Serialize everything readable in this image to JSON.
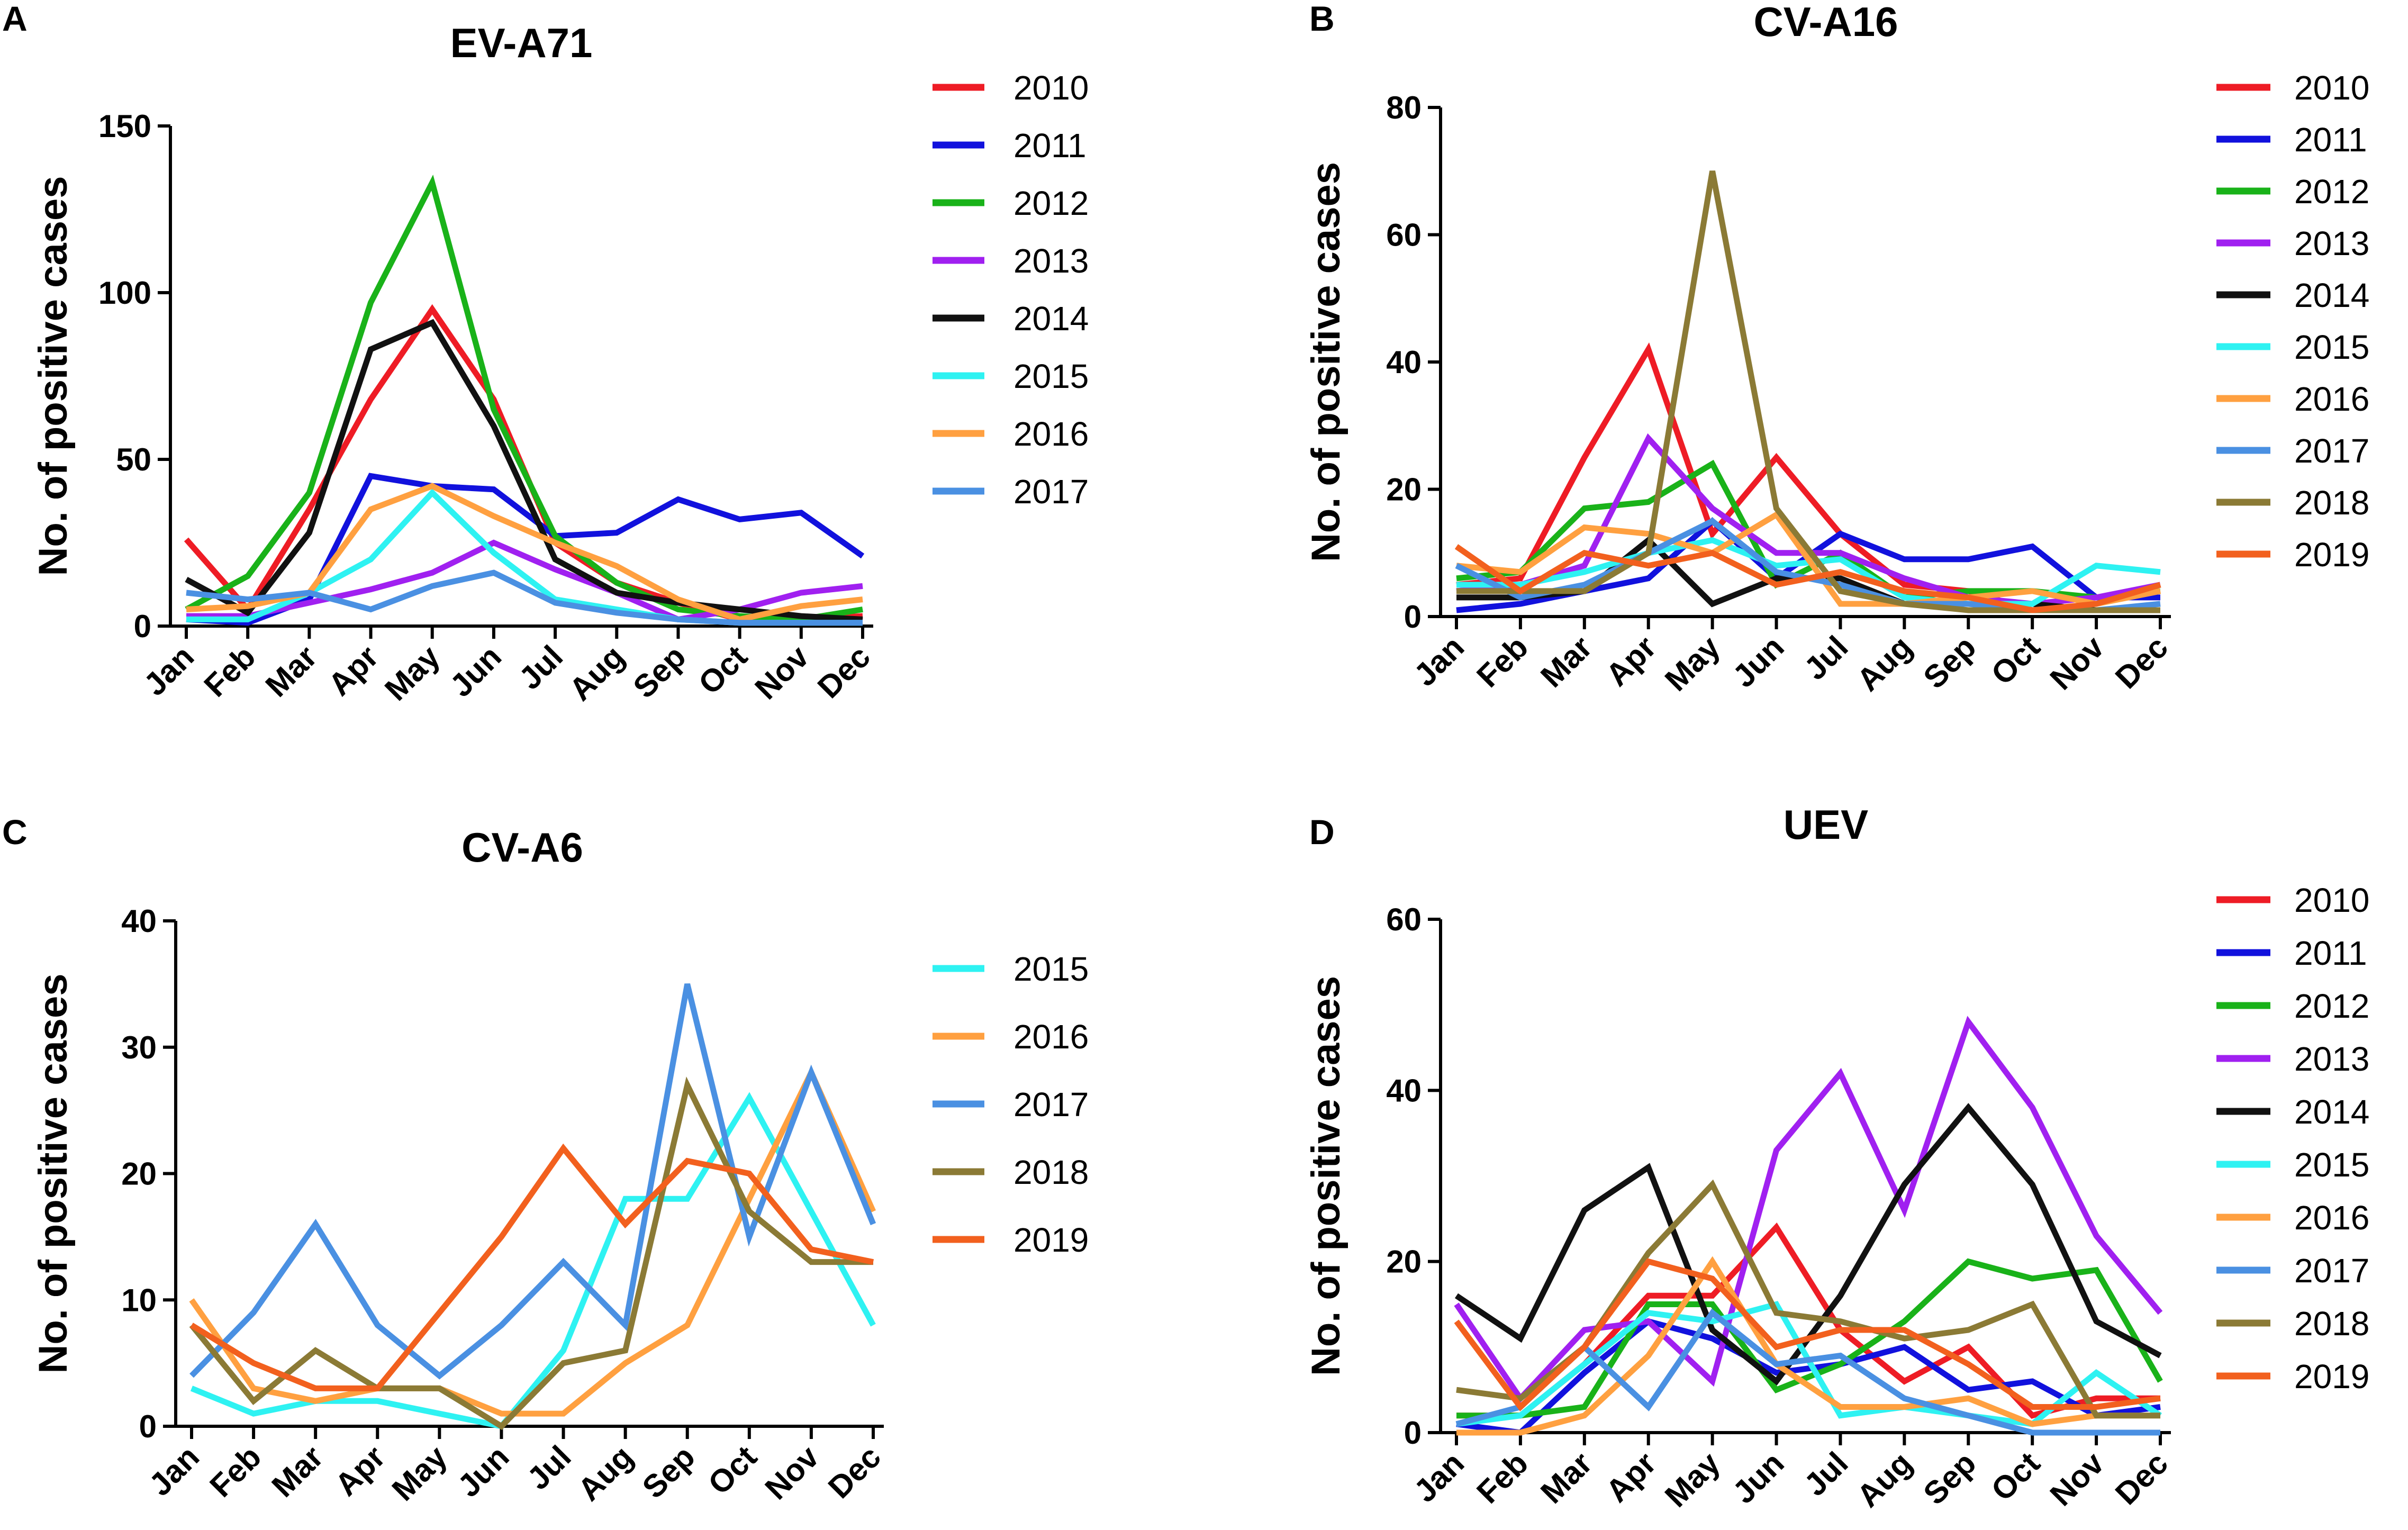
{
  "figure": {
    "panels": [
      "A",
      "B",
      "C",
      "D"
    ]
  },
  "chart_data": [
    {
      "panel": "A",
      "type": "line",
      "title": "EV-A71",
      "xlabel": "",
      "ylabel": "No. of positive cases",
      "ylim": [
        0,
        150
      ],
      "yticks": [
        "0",
        "50",
        "100",
        "150"
      ],
      "categories": [
        "Jan",
        "Feb",
        "Mar",
        "Apr",
        "May",
        "Jun",
        "Jul",
        "Aug",
        "Sep",
        "Oct",
        "Nov",
        "Dec"
      ],
      "series": [
        {
          "name": "2010",
          "color": "#ee1c25",
          "values": [
            26,
            5,
            35,
            68,
            95,
            68,
            25,
            13,
            7,
            2,
            2,
            3
          ]
        },
        {
          "name": "2011",
          "color": "#1111dd",
          "values": [
            2,
            1,
            8,
            45,
            42,
            41,
            27,
            28,
            38,
            32,
            34,
            21
          ]
        },
        {
          "name": "2012",
          "color": "#19b219",
          "values": [
            5,
            15,
            40,
            97,
            133,
            65,
            27,
            13,
            5,
            3,
            2,
            5
          ]
        },
        {
          "name": "2013",
          "color": "#a020f0",
          "values": [
            3,
            3,
            7,
            11,
            16,
            25,
            17,
            10,
            2,
            5,
            10,
            12
          ]
        },
        {
          "name": "2014",
          "color": "#111111",
          "values": [
            14,
            4,
            28,
            83,
            91,
            60,
            20,
            10,
            7,
            5,
            3,
            2
          ]
        },
        {
          "name": "2015",
          "color": "#2ef2f2",
          "values": [
            2,
            2,
            10,
            20,
            40,
            22,
            8,
            5,
            2,
            1,
            1,
            1
          ]
        },
        {
          "name": "2016",
          "color": "#ffa040",
          "values": [
            5,
            6,
            10,
            35,
            42,
            33,
            25,
            18,
            8,
            2,
            6,
            8
          ]
        },
        {
          "name": "2017",
          "color": "#4a90e2",
          "values": [
            10,
            8,
            10,
            5,
            12,
            16,
            7,
            4,
            2,
            1,
            1,
            1
          ]
        }
      ]
    },
    {
      "panel": "B",
      "type": "line",
      "title": "CV-A16",
      "xlabel": "",
      "ylabel": "No. of positive cases",
      "ylim": [
        0,
        80
      ],
      "yticks": [
        "0",
        "20",
        "40",
        "60",
        "80"
      ],
      "categories": [
        "Jan",
        "Feb",
        "Mar",
        "Apr",
        "May",
        "Jun",
        "Jul",
        "Aug",
        "Sep",
        "Oct",
        "Nov",
        "Dec"
      ],
      "series": [
        {
          "name": "2010",
          "color": "#ee1c25",
          "values": [
            5,
            6,
            25,
            42,
            13,
            25,
            13,
            5,
            4,
            1,
            1,
            1
          ]
        },
        {
          "name": "2011",
          "color": "#1111dd",
          "values": [
            1,
            2,
            4,
            6,
            15,
            6,
            13,
            9,
            9,
            11,
            3,
            3
          ]
        },
        {
          "name": "2012",
          "color": "#19b219",
          "values": [
            6,
            7,
            17,
            18,
            24,
            5,
            10,
            3,
            4,
            4,
            3,
            4
          ]
        },
        {
          "name": "2013",
          "color": "#a020f0",
          "values": [
            4,
            5,
            8,
            28,
            17,
            10,
            10,
            6,
            3,
            2,
            3,
            5
          ]
        },
        {
          "name": "2014",
          "color": "#111111",
          "values": [
            3,
            3,
            4,
            12,
            2,
            6,
            6,
            2,
            2,
            2,
            1,
            1
          ]
        },
        {
          "name": "2015",
          "color": "#2ef2f2",
          "values": [
            5,
            5,
            7,
            10,
            12,
            8,
            9,
            3,
            2,
            2,
            8,
            7
          ]
        },
        {
          "name": "2016",
          "color": "#ffa040",
          "values": [
            8,
            7,
            14,
            13,
            10,
            16,
            2,
            2,
            3,
            4,
            2,
            4
          ]
        },
        {
          "name": "2017",
          "color": "#4a90e2",
          "values": [
            8,
            3,
            5,
            10,
            15,
            7,
            5,
            2,
            2,
            1,
            1,
            2
          ]
        },
        {
          "name": "2018",
          "color": "#8b7a35",
          "values": [
            4,
            4,
            4,
            10,
            70,
            17,
            4,
            2,
            1,
            1,
            1,
            1
          ]
        },
        {
          "name": "2019",
          "color": "#f2601e",
          "values": [
            11,
            4,
            10,
            8,
            10,
            5,
            7,
            4,
            3,
            1,
            2,
            5
          ]
        }
      ]
    },
    {
      "panel": "C",
      "type": "line",
      "title": "CV-A6",
      "xlabel": "",
      "ylabel": "No. of positive cases",
      "ylim": [
        0,
        40
      ],
      "yticks": [
        "0",
        "10",
        "20",
        "30",
        "40"
      ],
      "categories": [
        "Jan",
        "Feb",
        "Mar",
        "Apr",
        "May",
        "Jun",
        "Jul",
        "Aug",
        "Sep",
        "Oct",
        "Nov",
        "Dec"
      ],
      "series": [
        {
          "name": "2015",
          "color": "#2ef2f2",
          "values": [
            3,
            1,
            2,
            2,
            1,
            0,
            6,
            18,
            18,
            26,
            17,
            8
          ]
        },
        {
          "name": "2016",
          "color": "#ffa040",
          "values": [
            10,
            3,
            2,
            3,
            3,
            1,
            1,
            5,
            8,
            18,
            28,
            17
          ]
        },
        {
          "name": "2017",
          "color": "#4a90e2",
          "values": [
            4,
            9,
            16,
            8,
            4,
            8,
            13,
            8,
            35,
            15,
            28,
            16
          ]
        },
        {
          "name": "2018",
          "color": "#8b7a35",
          "values": [
            8,
            2,
            6,
            3,
            3,
            0,
            5,
            6,
            27,
            17,
            13,
            13
          ]
        },
        {
          "name": "2019",
          "color": "#f2601e",
          "values": [
            8,
            5,
            3,
            3,
            9,
            15,
            22,
            16,
            21,
            20,
            14,
            13
          ]
        }
      ]
    },
    {
      "panel": "D",
      "type": "line",
      "title": "UEV",
      "xlabel": "",
      "ylabel": "No. of positive cases",
      "ylim": [
        0,
        60
      ],
      "yticks": [
        "0",
        "20",
        "40",
        "60"
      ],
      "categories": [
        "Jan",
        "Feb",
        "Mar",
        "Apr",
        "May",
        "Jun",
        "Jul",
        "Aug",
        "Sep",
        "Oct",
        "Nov",
        "Dec"
      ],
      "series": [
        {
          "name": "2010",
          "color": "#ee1c25",
          "values": [
            2,
            2,
            8,
            16,
            16,
            24,
            12,
            6,
            10,
            2,
            4,
            4
          ]
        },
        {
          "name": "2011",
          "color": "#1111dd",
          "values": [
            1,
            0,
            7,
            13,
            11,
            7,
            8,
            10,
            5,
            6,
            2,
            3
          ]
        },
        {
          "name": "2012",
          "color": "#19b219",
          "values": [
            2,
            2,
            3,
            15,
            15,
            5,
            8,
            13,
            20,
            18,
            19,
            6
          ]
        },
        {
          "name": "2013",
          "color": "#a020f0",
          "values": [
            15,
            4,
            12,
            13,
            6,
            33,
            42,
            26,
            48,
            38,
            23,
            14
          ]
        },
        {
          "name": "2014",
          "color": "#111111",
          "values": [
            16,
            11,
            26,
            31,
            12,
            6,
            16,
            29,
            38,
            29,
            13,
            9
          ]
        },
        {
          "name": "2015",
          "color": "#2ef2f2",
          "values": [
            1,
            2,
            8,
            14,
            13,
            15,
            2,
            3,
            2,
            1,
            7,
            2
          ]
        },
        {
          "name": "2016",
          "color": "#ffa040",
          "values": [
            0,
            0,
            2,
            9,
            20,
            8,
            3,
            3,
            4,
            1,
            2,
            2
          ]
        },
        {
          "name": "2017",
          "color": "#4a90e2",
          "values": [
            1,
            3,
            10,
            3,
            14,
            8,
            9,
            4,
            2,
            0,
            0,
            0
          ]
        },
        {
          "name": "2018",
          "color": "#8b7a35",
          "values": [
            5,
            4,
            10,
            21,
            29,
            14,
            13,
            11,
            12,
            15,
            2,
            2
          ]
        },
        {
          "name": "2019",
          "color": "#f2601e",
          "values": [
            13,
            3,
            10,
            20,
            18,
            10,
            12,
            12,
            8,
            3,
            3,
            4
          ]
        }
      ]
    }
  ]
}
